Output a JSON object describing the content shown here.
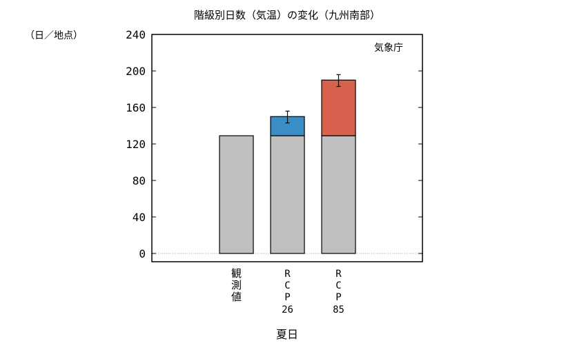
{
  "chart_data": {
    "type": "bar",
    "title": "階級別日数（気温）の変化（九州南部）",
    "ylabel": "（日／地点）",
    "xlabel": "夏日",
    "source": "気象庁",
    "ylim": [
      0,
      240
    ],
    "yticks": [
      0,
      40,
      80,
      120,
      160,
      200,
      240
    ],
    "categories": [
      "観測値",
      "RCP26",
      "RCP85"
    ],
    "category_labels": [
      [
        "観",
        "測",
        "値"
      ],
      [
        "R",
        "C",
        "P",
        "26"
      ],
      [
        "R",
        "C",
        "P",
        "85"
      ]
    ],
    "baseline": [
      129,
      129,
      129
    ],
    "increase": [
      0,
      21,
      61
    ],
    "error_range": [
      null,
      [
        143,
        156
      ],
      [
        183,
        196
      ]
    ],
    "colors": {
      "baseline": "#c0c0c0",
      "increase": [
        null,
        "#3a8ec5",
        "#d8614e"
      ],
      "zero_line": "#999999"
    }
  }
}
